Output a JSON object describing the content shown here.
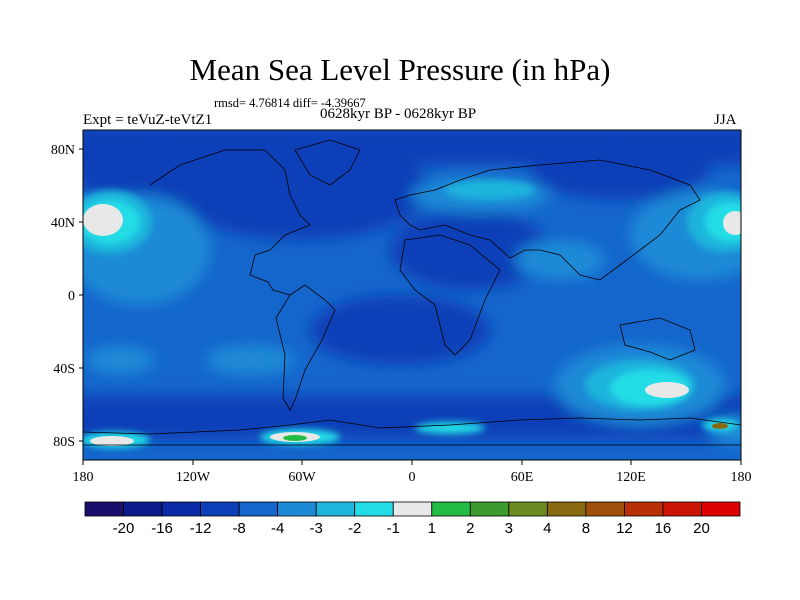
{
  "title": "Mean Sea Level Pressure (in hPa)",
  "stats": "rmsd= 4.76814 diff= -4.39667",
  "period": "0628kyr BP - 0628kyr BP",
  "expt": "Expt = teVuZ-teVtZ1",
  "season": "JJA",
  "lat_ticks": [
    "80N",
    "40N",
    "0",
    "40S",
    "80S"
  ],
  "lon_ticks": [
    "180",
    "120W",
    "60W",
    "0",
    "60E",
    "120E",
    "180"
  ],
  "colorbar": {
    "labels": [
      "-20",
      "-16",
      "-12",
      "-8",
      "-4",
      "-3",
      "-2",
      "-1",
      "1",
      "2",
      "3",
      "4",
      "8",
      "12",
      "16",
      "20"
    ],
    "colors": [
      "#1a0f6b",
      "#0c1a8c",
      "#0b2aa8",
      "#0c3fb8",
      "#1566cc",
      "#1e8ad6",
      "#1fb4dc",
      "#22dde6",
      "#e8e8e8",
      "#22bb44",
      "#3d9a2e",
      "#6b8a20",
      "#8a6a10",
      "#a0500a",
      "#b83008",
      "#cc1405",
      "#dd0000"
    ]
  }
}
